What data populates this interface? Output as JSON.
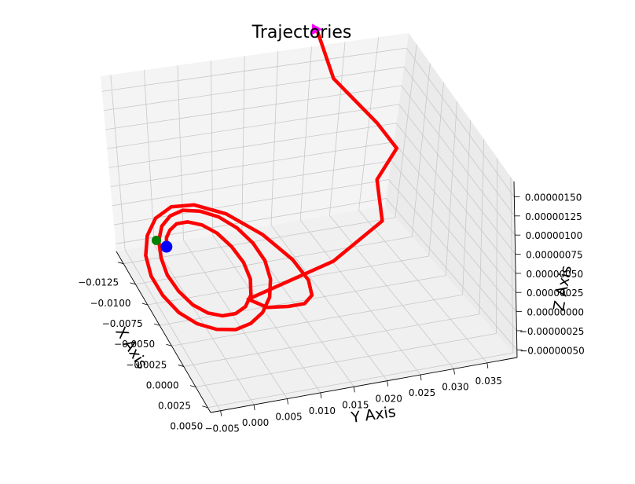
{
  "chart_data": {
    "type": "line",
    "projection": "3d",
    "title": "Trajectories",
    "xlabel": "X Axis",
    "ylabel": "Y Axis",
    "zlabel": "Z Axis",
    "grid": true,
    "x_ticks": [
      "−0.0125",
      "−0.0100",
      "−0.0075",
      "−0.0050",
      "−0.0025",
      "0.0000",
      "0.0025",
      "0.0050"
    ],
    "y_ticks": [
      "−0.005",
      "0.000",
      "0.005",
      "0.010",
      "0.015",
      "0.020",
      "0.025",
      "0.030",
      "0.035"
    ],
    "z_ticks": [
      "−0.00000050",
      "−0.00000025",
      "0.00000000",
      "0.00000025",
      "0.00000050",
      "0.00000075",
      "0.00000100",
      "0.00000125",
      "0.00000150"
    ],
    "series": [
      {
        "kind": "trajectory",
        "color": "#ff0000",
        "x": [
          -0.0082,
          -0.0086,
          -0.0094,
          -0.0102,
          -0.0108,
          -0.0108,
          -0.0102,
          -0.009,
          -0.0072,
          -0.0052,
          -0.0032,
          -0.0014,
          -0.0002,
          0.0004,
          0.0004,
          -0.0002,
          -0.0014,
          -0.0032,
          -0.0052,
          -0.0072,
          -0.0092,
          -0.0108,
          -0.0118,
          -0.0122,
          -0.0118,
          -0.0108,
          -0.0092,
          -0.0072,
          -0.005,
          -0.0028,
          -0.0008,
          0.0008,
          0.0018,
          0.0022,
          0.0018,
          0.0008,
          -0.0008,
          -0.003,
          -0.0054,
          -0.0078,
          -0.01,
          -0.0118,
          -0.0128,
          -0.0126,
          -0.011,
          -0.008,
          -0.0046,
          -0.002,
          -0.0002,
          0.0006,
          0.0006,
          0.0003,
          -0.0008,
          -0.0012,
          -0.004,
          -0.0092,
          -0.0122,
          -0.0137,
          -0.0153,
          -0.0167
        ],
        "y": [
          -0.0022,
          -0.002,
          -0.0014,
          -0.0002,
          0.0014,
          0.0032,
          0.005,
          0.0064,
          0.0072,
          0.0074,
          0.0068,
          0.0054,
          0.0036,
          0.0016,
          -0.0004,
          -0.0022,
          -0.0036,
          -0.0044,
          -0.0046,
          -0.004,
          -0.0028,
          -0.001,
          0.0012,
          0.0036,
          0.006,
          0.0082,
          0.0098,
          0.0106,
          0.0106,
          0.0096,
          0.0078,
          0.0054,
          0.0028,
          0.0002,
          -0.0024,
          -0.0046,
          -0.0062,
          -0.007,
          -0.007,
          -0.006,
          -0.004,
          -0.0012,
          0.0022,
          0.0058,
          0.0096,
          0.0128,
          0.0146,
          0.0148,
          0.0138,
          0.012,
          0.0095,
          0.0065,
          0.0045,
          0.018,
          0.028,
          0.032,
          0.038,
          0.036,
          0.03,
          0.028
        ],
        "z": [
          0,
          0,
          0,
          0,
          0,
          0,
          0,
          0,
          0,
          0,
          0,
          0,
          0,
          0,
          0,
          0,
          0,
          0,
          0,
          0,
          0,
          0,
          0,
          0,
          0,
          0,
          0,
          0,
          0,
          0,
          0,
          0,
          0,
          0,
          0,
          0,
          0,
          0,
          0,
          0,
          0,
          0,
          0,
          0,
          0,
          0,
          0,
          0,
          0,
          0,
          0,
          0,
          2e-08,
          2.8e-07,
          3.8e-07,
          3.4e-07,
          3.7e-07,
          5.8e-07,
          1.08e-06,
          1.62e-06
        ]
      },
      {
        "kind": "marker",
        "shape": "circle",
        "color": "#0000ff",
        "x": [
          -0.0084
        ],
        "y": [
          -0.0022
        ],
        "z": [
          0
        ]
      },
      {
        "kind": "marker",
        "shape": "circle",
        "color": "#008000",
        "x": [
          -0.0093
        ],
        "y": [
          -0.0031
        ],
        "z": [
          0
        ]
      },
      {
        "kind": "marker",
        "shape": "triangle-right",
        "color": "#ff00ff",
        "x": [
          -0.0167
        ],
        "y": [
          0.028
        ],
        "z": [
          1.62e-06
        ]
      }
    ]
  }
}
